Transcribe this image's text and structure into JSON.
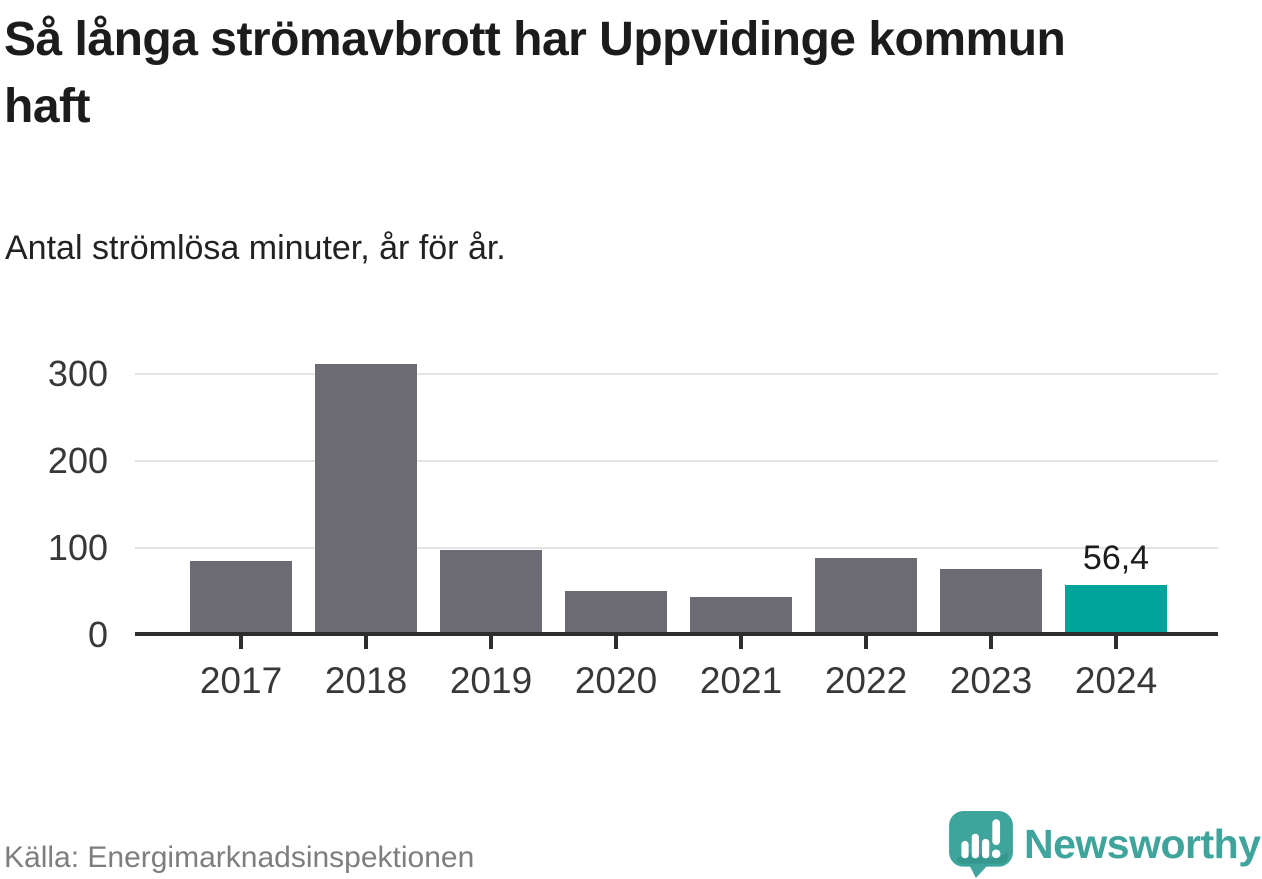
{
  "title": "Så långa strömavbrott har Uppvidinge kommun haft",
  "subtitle": "Antal strömlösa minuter, år för år.",
  "source": "Källa: Energimarknadsinspektionen",
  "logo": {
    "wordmark": "Newsworthy",
    "icon": "newsworthy-speech-bubble-bar-chart-icon"
  },
  "colors": {
    "bar_default": "#6c6a73",
    "bar_highlight": "#00a49b",
    "gridline": "#e3e3e3",
    "axis": "#2d2d2d",
    "axis_text": "#383838",
    "title_text": "#1c1c1c",
    "source_text": "#7e7e7e",
    "logo_teal": "#3fa49b"
  },
  "chart_data": {
    "type": "bar",
    "title": "Så långa strömavbrott har Uppvidinge kommun haft",
    "subtitle": "Antal strömlösa minuter, år för år.",
    "categories": [
      "2017",
      "2018",
      "2019",
      "2020",
      "2021",
      "2022",
      "2023",
      "2024"
    ],
    "values": [
      84,
      310,
      97,
      49,
      42,
      87,
      75,
      56.4
    ],
    "highlight_index": 7,
    "value_labels": {
      "7": "56,4"
    },
    "yticks": [
      0,
      100,
      200,
      300
    ],
    "ytick_labels": [
      "0",
      "100",
      "200",
      "300"
    ],
    "ylim": [
      0,
      320
    ],
    "xlabel": "",
    "ylabel": "",
    "grid": "horizontal",
    "legend": "none"
  }
}
